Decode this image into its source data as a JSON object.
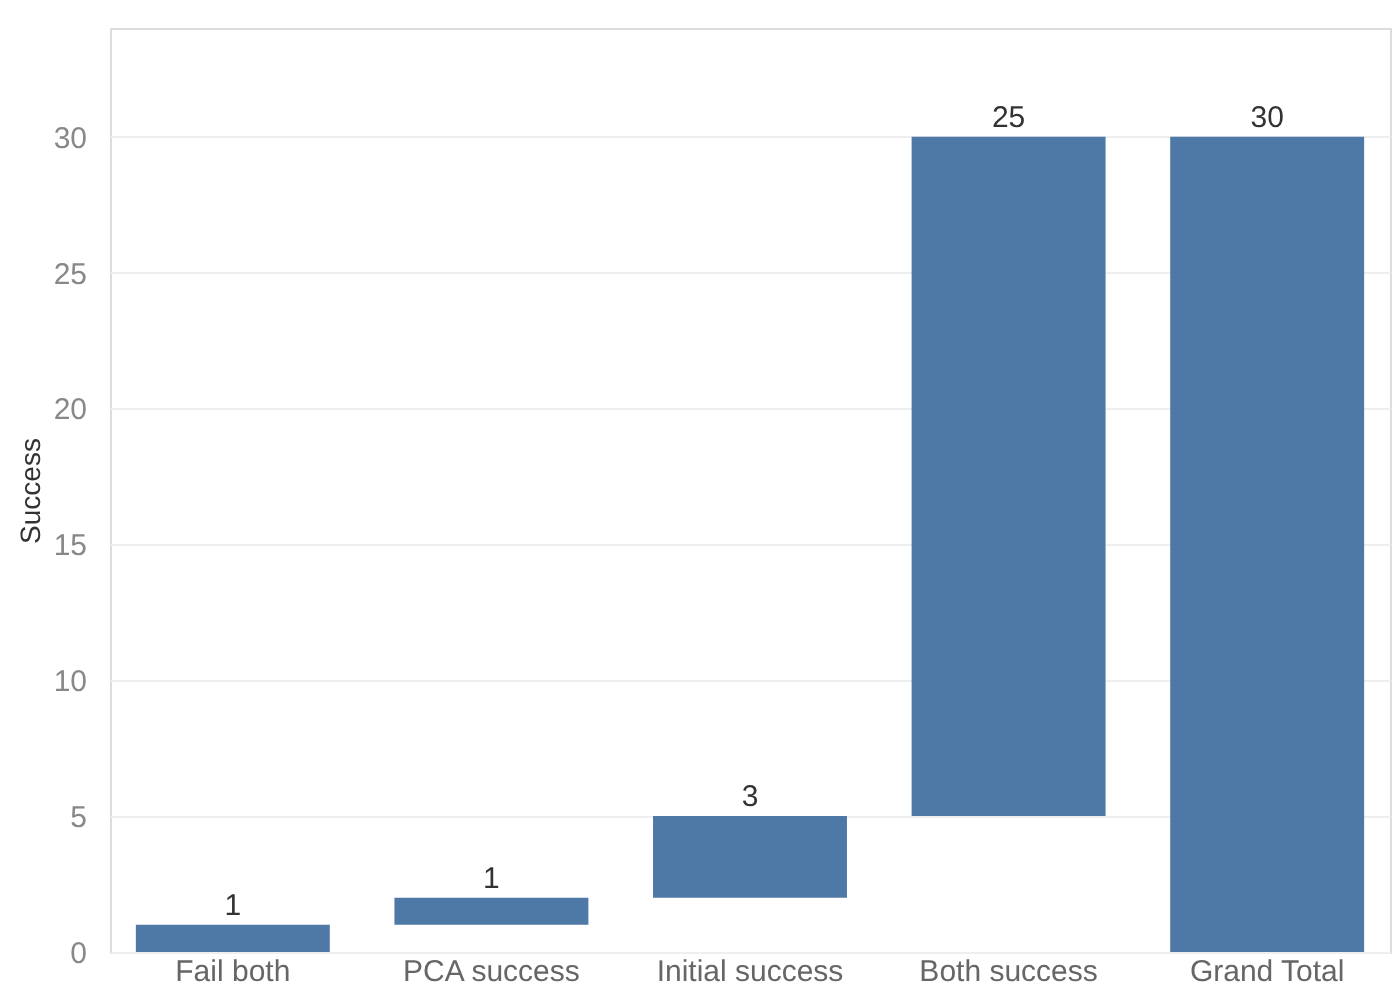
{
  "chart_data": {
    "type": "bar",
    "ylabel": "Success",
    "categories": [
      "Fail both",
      "PCA success",
      "Initial success",
      "Both success",
      "Grand Total"
    ],
    "values": [
      1,
      1,
      3,
      25,
      30
    ],
    "base": [
      0,
      1,
      2,
      5,
      0
    ],
    "color": "#4e79a7",
    "data_labels": true,
    "ylim": [
      0,
      34
    ],
    "yticks": [
      0,
      5,
      10,
      15,
      20,
      25,
      30
    ],
    "grid": "y"
  }
}
